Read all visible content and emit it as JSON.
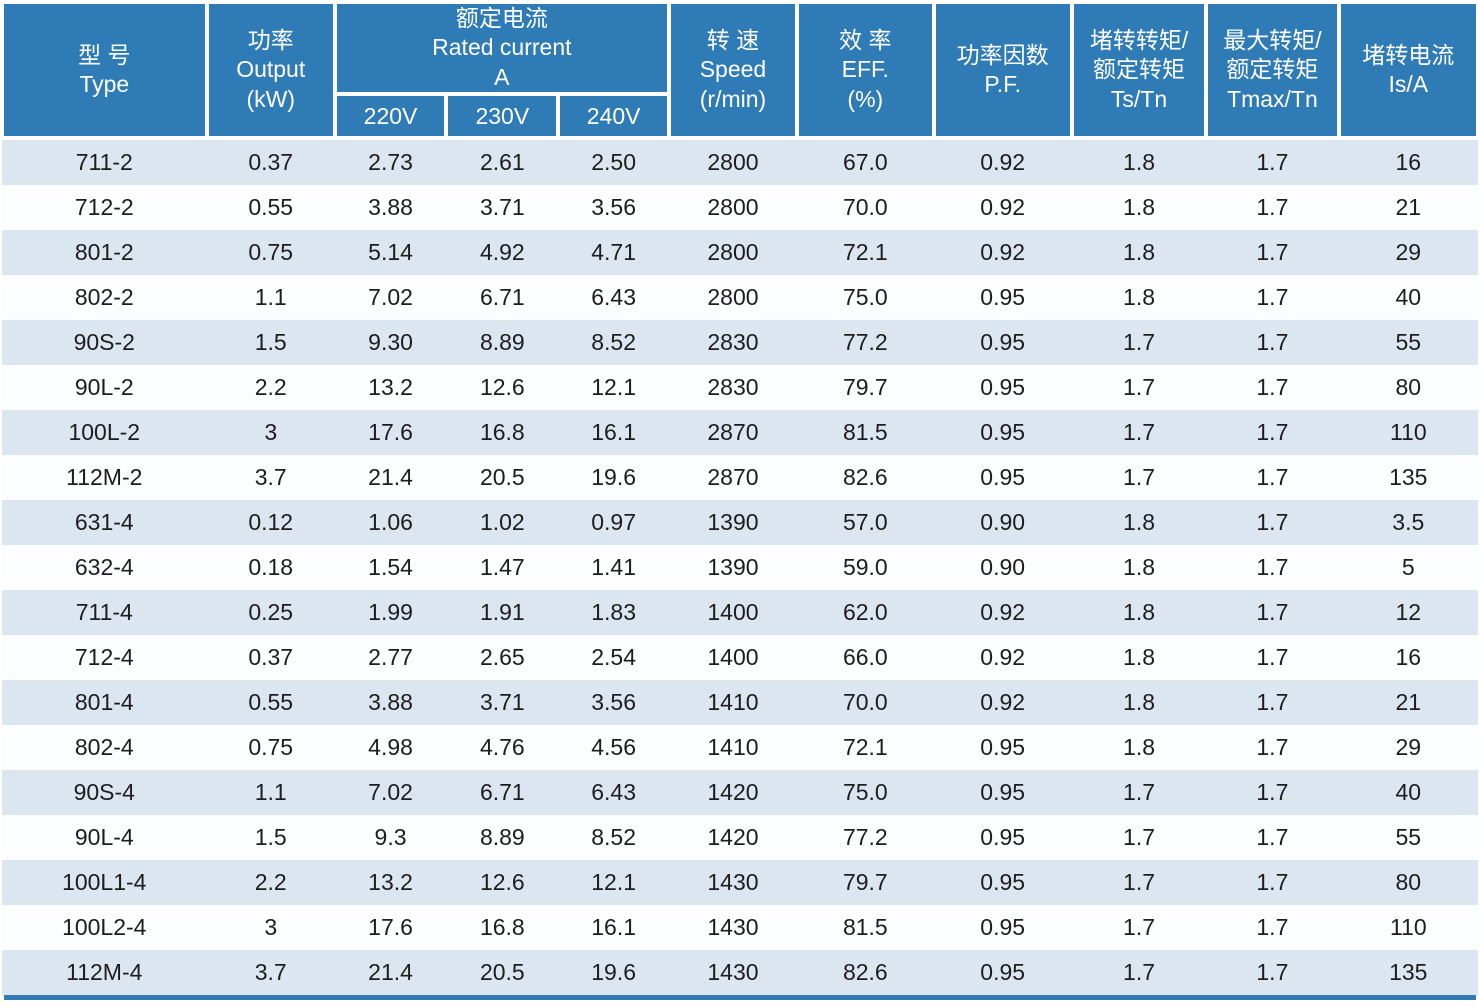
{
  "colors": {
    "header_bg": "#2e7bb6",
    "stripe": "#dbe6f0",
    "row_white": "#fcfdfe",
    "data_text": "#1d1d1d",
    "header_text": "#ffffff"
  },
  "table": {
    "header": {
      "type": {
        "zh": "型 号",
        "en": "Type"
      },
      "output": {
        "zh": "功率",
        "en": "Output",
        "unit": "(kW)"
      },
      "rated_current": {
        "zh": "额定电流",
        "en": "Rated current",
        "unit": "A",
        "sub": {
          "v220": "220V",
          "v230": "230V",
          "v240": "240V"
        }
      },
      "speed": {
        "zh": "转 速",
        "en": "Speed",
        "unit": "(r/min)"
      },
      "eff": {
        "zh": "效 率",
        "en": "EFF.",
        "unit": "(%)"
      },
      "pf": {
        "zh": "功率因数",
        "en": "P.F."
      },
      "ts_tn": {
        "zh1": "堵转转矩/",
        "zh2": "额定转矩",
        "en": "Ts/Tn"
      },
      "tmax_tn": {
        "zh1": "最大转矩/",
        "zh2": "额定转矩",
        "en": "Tmax/Tn"
      },
      "is_a": {
        "zh": "堵转电流",
        "en": "Is/A"
      }
    },
    "rows": [
      [
        "711-2",
        "0.37",
        "2.73",
        "2.61",
        "2.50",
        "2800",
        "67.0",
        "0.92",
        "1.8",
        "1.7",
        "16"
      ],
      [
        "712-2",
        "0.55",
        "3.88",
        "3.71",
        "3.56",
        "2800",
        "70.0",
        "0.92",
        "1.8",
        "1.7",
        "21"
      ],
      [
        "801-2",
        "0.75",
        "5.14",
        "4.92",
        "4.71",
        "2800",
        "72.1",
        "0.92",
        "1.8",
        "1.7",
        "29"
      ],
      [
        "802-2",
        "1.1",
        "7.02",
        "6.71",
        "6.43",
        "2800",
        "75.0",
        "0.95",
        "1.8",
        "1.7",
        "40"
      ],
      [
        "90S-2",
        "1.5",
        "9.30",
        "8.89",
        "8.52",
        "2830",
        "77.2",
        "0.95",
        "1.7",
        "1.7",
        "55"
      ],
      [
        "90L-2",
        "2.2",
        "13.2",
        "12.6",
        "12.1",
        "2830",
        "79.7",
        "0.95",
        "1.7",
        "1.7",
        "80"
      ],
      [
        "100L-2",
        "3",
        "17.6",
        "16.8",
        "16.1",
        "2870",
        "81.5",
        "0.95",
        "1.7",
        "1.7",
        "110"
      ],
      [
        "112M-2",
        "3.7",
        "21.4",
        "20.5",
        "19.6",
        "2870",
        "82.6",
        "0.95",
        "1.7",
        "1.7",
        "135"
      ],
      [
        "631-4",
        "0.12",
        "1.06",
        "1.02",
        "0.97",
        "1390",
        "57.0",
        "0.90",
        "1.8",
        "1.7",
        "3.5"
      ],
      [
        "632-4",
        "0.18",
        "1.54",
        "1.47",
        "1.41",
        "1390",
        "59.0",
        "0.90",
        "1.8",
        "1.7",
        "5"
      ],
      [
        "711-4",
        "0.25",
        "1.99",
        "1.91",
        "1.83",
        "1400",
        "62.0",
        "0.92",
        "1.8",
        "1.7",
        "12"
      ],
      [
        "712-4",
        "0.37",
        "2.77",
        "2.65",
        "2.54",
        "1400",
        "66.0",
        "0.92",
        "1.8",
        "1.7",
        "16"
      ],
      [
        "801-4",
        "0.55",
        "3.88",
        "3.71",
        "3.56",
        "1410",
        "70.0",
        "0.92",
        "1.8",
        "1.7",
        "21"
      ],
      [
        "802-4",
        "0.75",
        "4.98",
        "4.76",
        "4.56",
        "1410",
        "72.1",
        "0.95",
        "1.8",
        "1.7",
        "29"
      ],
      [
        "90S-4",
        "1.1",
        "7.02",
        "6.71",
        "6.43",
        "1420",
        "75.0",
        "0.95",
        "1.7",
        "1.7",
        "40"
      ],
      [
        "90L-4",
        "1.5",
        "9.3",
        "8.89",
        "8.52",
        "1420",
        "77.2",
        "0.95",
        "1.7",
        "1.7",
        "55"
      ],
      [
        "100L1-4",
        "2.2",
        "13.2",
        "12.6",
        "12.1",
        "1430",
        "79.7",
        "0.95",
        "1.7",
        "1.7",
        "80"
      ],
      [
        "100L2-4",
        "3",
        "17.6",
        "16.8",
        "16.1",
        "1430",
        "81.5",
        "0.95",
        "1.7",
        "1.7",
        "110"
      ],
      [
        "112M-4",
        "3.7",
        "21.4",
        "20.5",
        "19.6",
        "1430",
        "82.6",
        "0.95",
        "1.7",
        "1.7",
        "135"
      ]
    ]
  }
}
